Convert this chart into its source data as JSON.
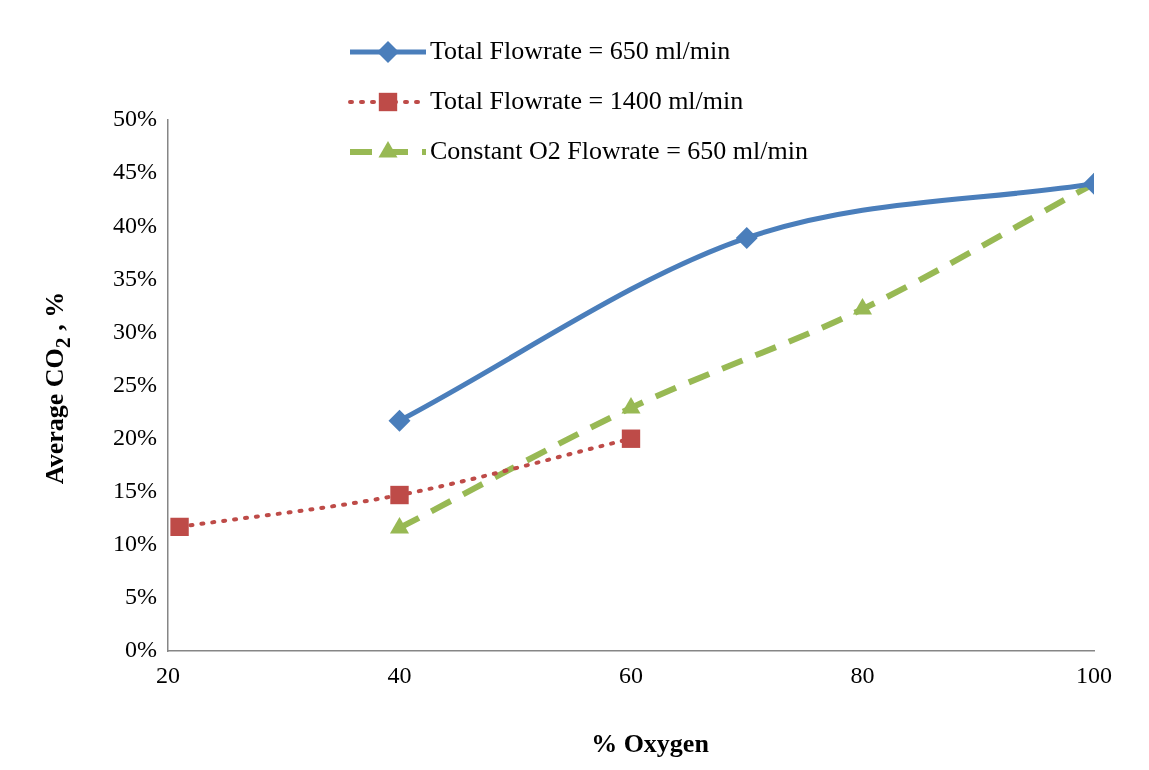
{
  "chart_data": {
    "type": "line",
    "xlabel": "% Oxygen",
    "ylabel": "Average CO$_{2}$ , %",
    "xlim": [
      20,
      100
    ],
    "xticks": [
      20,
      40,
      60,
      80,
      100
    ],
    "ylim": [
      0,
      50
    ],
    "yticks": [
      {
        "value": 0,
        "label": "0%"
      },
      {
        "value": 5,
        "label": "5%"
      },
      {
        "value": 10,
        "label": "10%"
      },
      {
        "value": 15,
        "label": "15%"
      },
      {
        "value": 20,
        "label": "20%"
      },
      {
        "value": 25,
        "label": "25%"
      },
      {
        "value": 30,
        "label": "30%"
      },
      {
        "value": 35,
        "label": "35%"
      },
      {
        "value": 40,
        "label": "40%"
      },
      {
        "value": 45,
        "label": "45%"
      },
      {
        "value": 50,
        "label": "50%"
      }
    ],
    "grid": false,
    "legend": "top",
    "series": [
      {
        "name": "Total Flowrate = 650 ml/min",
        "color": "#4a7ebb",
        "x": [
          40,
          70,
          100
        ],
        "values": [
          21.7,
          38.9,
          44
        ],
        "marker": "diamond",
        "line_style": "solid"
      },
      {
        "name": "Total Flowrate = 1400 ml/min",
        "color": "#be4b48",
        "x": [
          21,
          40,
          60
        ],
        "values": [
          11.7,
          14.7,
          20
        ],
        "marker": "square",
        "line_style": "dotted"
      },
      {
        "name": "Constant O2 Flowrate = 650 ml/min",
        "color": "#98b954",
        "x": [
          40,
          60,
          80,
          100
        ],
        "values": [
          11.6,
          22.9,
          32.2,
          44
        ],
        "marker": "triangle",
        "line_style": "dashed"
      }
    ]
  }
}
